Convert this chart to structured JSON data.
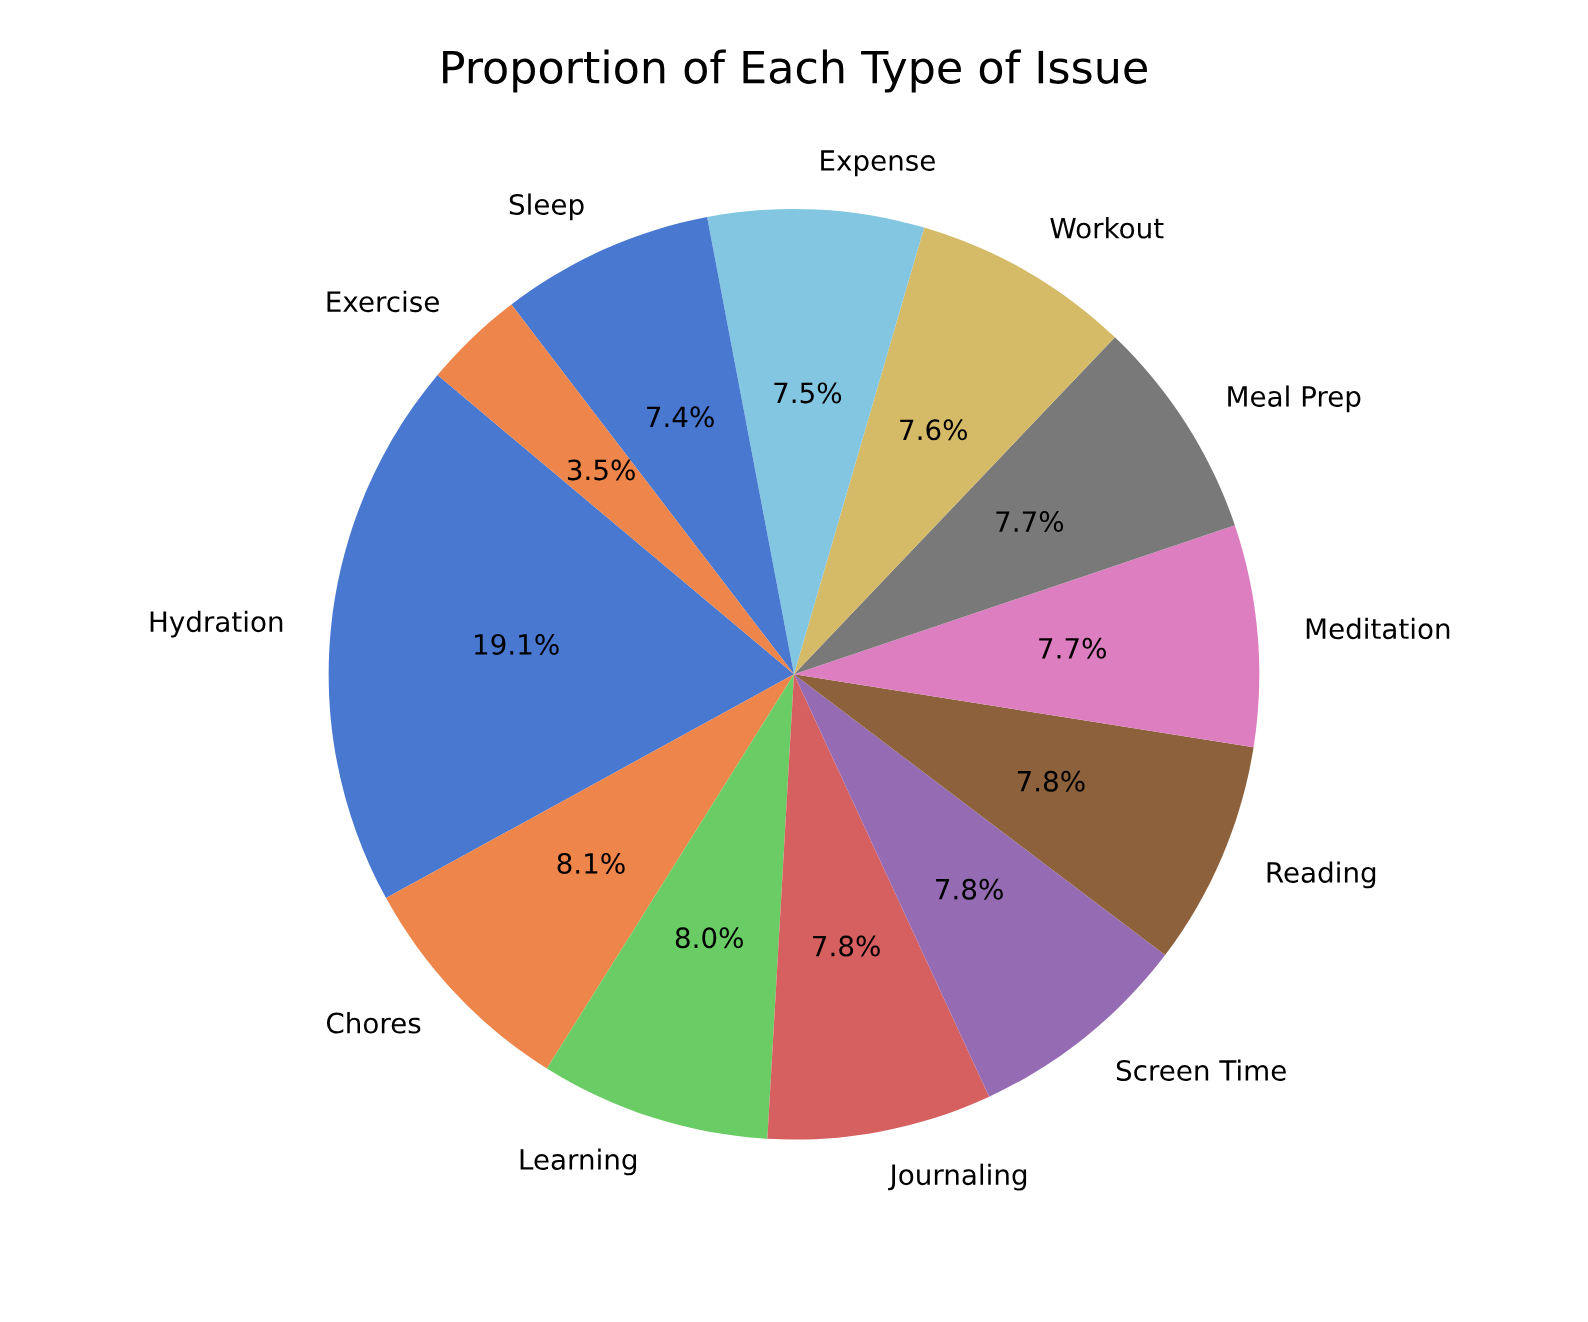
{
  "chart_data": {
    "type": "pie",
    "title": "Proportion of Each Type of Issue",
    "categories": [
      "Hydration",
      "Chores",
      "Learning",
      "Journaling",
      "Screen Time",
      "Reading",
      "Meditation",
      "Meal Prep",
      "Workout",
      "Expense",
      "Sleep",
      "Exercise"
    ],
    "values": [
      19.1,
      8.1,
      8.0,
      7.8,
      7.8,
      7.8,
      7.7,
      7.7,
      7.6,
      7.5,
      7.4,
      3.5
    ],
    "value_labels": [
      "19.1%",
      "8.1%",
      "8.0%",
      "7.8%",
      "7.8%",
      "7.8%",
      "7.7%",
      "7.7%",
      "7.6%",
      "7.5%",
      "7.4%",
      "3.5%"
    ],
    "colors": [
      "#4878d0",
      "#ee854a",
      "#6acc64",
      "#d65f5f",
      "#956cb4",
      "#8c613c",
      "#dc7ec0",
      "#797979",
      "#d5bb67",
      "#82c6e2",
      "#4878d0",
      "#ee854a"
    ]
  }
}
